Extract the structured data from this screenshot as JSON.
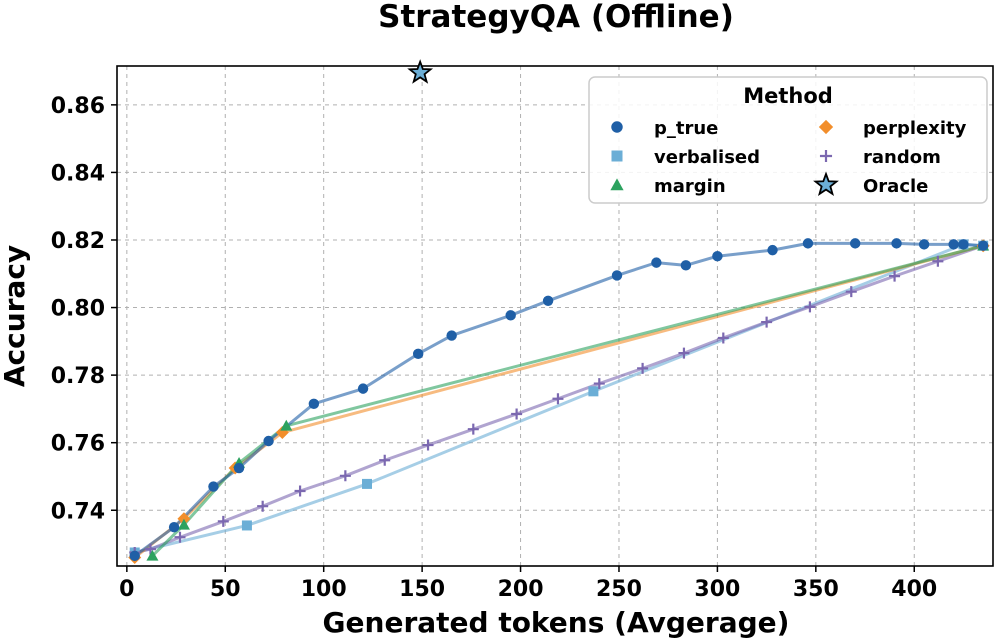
{
  "chart_data": {
    "type": "line",
    "title": "StrategyQA (Offline)",
    "xlabel": "Generated tokens (Avgerage)",
    "ylabel": "Accuracy",
    "xlim": [
      -5,
      440
    ],
    "ylim": [
      0.7235,
      0.8715
    ],
    "xticks": [
      0,
      50,
      100,
      150,
      200,
      250,
      300,
      350,
      400
    ],
    "yticks": [
      0.74,
      0.76,
      0.78,
      0.8,
      0.82,
      0.84,
      0.86
    ],
    "xtick_labels": [
      "0",
      "50",
      "100",
      "150",
      "200",
      "250",
      "300",
      "350",
      "400"
    ],
    "ytick_labels": [
      "0.74",
      "0.76",
      "0.78",
      "0.80",
      "0.82",
      "0.84",
      "0.86"
    ],
    "grid": true,
    "legend": {
      "title": "Method",
      "placement": "top-right"
    },
    "series": [
      {
        "name": "p_true",
        "color": "#1f5fa6",
        "marker": "circle",
        "x": [
          4,
          24,
          44,
          57,
          72,
          95,
          120,
          148,
          165,
          195,
          214,
          249,
          269,
          284,
          300,
          328,
          346,
          370,
          391,
          405,
          420,
          425,
          435
        ],
        "y": [
          0.7265,
          0.735,
          0.747,
          0.7525,
          0.7605,
          0.7715,
          0.776,
          0.7863,
          0.7917,
          0.7977,
          0.802,
          0.8095,
          0.8133,
          0.8125,
          0.8152,
          0.817,
          0.819,
          0.819,
          0.819,
          0.8187,
          0.8187,
          0.8187,
          0.8183
        ]
      },
      {
        "name": "verbalised",
        "color": "#6baed6",
        "marker": "square",
        "x": [
          4,
          61,
          122,
          237,
          425,
          435
        ],
        "y": [
          0.7275,
          0.7355,
          0.7478,
          0.7752,
          0.8187,
          0.8183
        ]
      },
      {
        "name": "margin",
        "color": "#2ca25f",
        "marker": "triangle",
        "x": [
          13,
          29,
          57,
          81,
          435
        ],
        "y": [
          0.7265,
          0.7357,
          0.754,
          0.765,
          0.8183
        ]
      },
      {
        "name": "perplexity",
        "color": "#f28e2b",
        "marker": "diamond",
        "x": [
          4,
          29,
          55,
          79,
          435
        ],
        "y": [
          0.726,
          0.7375,
          0.7525,
          0.763,
          0.8183
        ]
      },
      {
        "name": "random",
        "color": "#7b68b0",
        "marker": "plus",
        "x": [
          4,
          12,
          27,
          49,
          69,
          88,
          111,
          131,
          153,
          176,
          198,
          219,
          240,
          262,
          283,
          303,
          325,
          347,
          368,
          390,
          412,
          435
        ],
        "y": [
          0.7275,
          0.7285,
          0.732,
          0.7367,
          0.7412,
          0.7457,
          0.7502,
          0.7548,
          0.7593,
          0.764,
          0.7685,
          0.773,
          0.7775,
          0.782,
          0.7865,
          0.791,
          0.7957,
          0.8002,
          0.8047,
          0.8093,
          0.8137,
          0.8183
        ]
      },
      {
        "name": "Oracle",
        "color": "#6baed6",
        "marker": "star",
        "x": [
          149
        ],
        "y": [
          0.8695
        ]
      }
    ]
  }
}
